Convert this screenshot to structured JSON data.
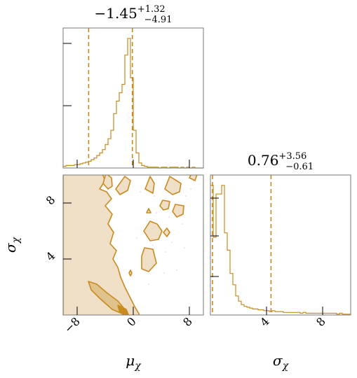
{
  "chart_data": [
    {
      "panel": "mu-marginal",
      "type": "histogram",
      "title": {
        "median": "−1.45",
        "plus": "+1.32",
        "minus": "−4.91"
      },
      "color": "#c98a1f",
      "xlim": [
        -10,
        10
      ],
      "quantiles": [
        -6.36,
        -1.45,
        -0.13
      ],
      "bins_x": [
        -10,
        -9.6,
        -9.2,
        -8.8,
        -8.4,
        -8.0,
        -7.6,
        -7.2,
        -6.8,
        -6.4,
        -6.0,
        -5.6,
        -5.2,
        -4.8,
        -4.4,
        -4.0,
        -3.6,
        -3.2,
        -2.8,
        -2.4,
        -2.0,
        -1.6,
        -1.2,
        -0.8,
        -0.4,
        0.0,
        0.4,
        0.8,
        1.2,
        1.6,
        2.0,
        2.4,
        2.8,
        3.2,
        3.6,
        4.0,
        4.4,
        4.8,
        5.2,
        5.6,
        6.0,
        6.4,
        6.8,
        7.2,
        7.6,
        8.0,
        8.4,
        8.8,
        9.2,
        9.6,
        10.0
      ],
      "counts": [
        2,
        3,
        3,
        3,
        4,
        4,
        5,
        6,
        7,
        8,
        10,
        12,
        15,
        18,
        22,
        28,
        35,
        45,
        65,
        80,
        90,
        100,
        135,
        155,
        108,
        45,
        18,
        6,
        3,
        2,
        1,
        1,
        1,
        1,
        0,
        1,
        1,
        0,
        1,
        1,
        1,
        0,
        1,
        0,
        1,
        0,
        1,
        0,
        0,
        0
      ]
    },
    {
      "panel": "joint",
      "type": "contour",
      "xlabel": "μχ",
      "ylabel": "σχ",
      "xlim": [
        -10,
        10
      ],
      "ylim": [
        0,
        10
      ],
      "xticks": [
        "−8",
        "0",
        "8"
      ],
      "yticks": [
        "4",
        "8"
      ],
      "fill_colors": [
        "#efdfc6",
        "#e0c28c",
        "#c98a1f"
      ],
      "line_color": "#c98a1f"
    },
    {
      "panel": "sigma-marginal",
      "type": "histogram",
      "title": {
        "median": "0.76",
        "plus": "+3.56",
        "minus": "−0.61"
      },
      "color": "#c98a1f",
      "xlim": [
        0,
        10
      ],
      "xlabel": "σχ",
      "xticks": [
        "4",
        "8"
      ],
      "quantiles": [
        0.15,
        0.76,
        4.32
      ],
      "bins_x": [
        0,
        0.2,
        0.4,
        0.6,
        0.8,
        1.0,
        1.2,
        1.4,
        1.6,
        1.8,
        2.0,
        2.2,
        2.4,
        2.6,
        2.8,
        3.0,
        3.2,
        3.4,
        3.6,
        3.8,
        4.0,
        4.2,
        4.4,
        4.6,
        4.8,
        5.0,
        5.2,
        5.4,
        5.6,
        5.8,
        6.0,
        6.2,
        6.4,
        6.6,
        6.8,
        7.0,
        7.2,
        7.4,
        7.6,
        7.8,
        8.0,
        8.2,
        8.4,
        8.6,
        8.8,
        9.0,
        9.2,
        9.4,
        9.6,
        9.8,
        10.0
      ],
      "counts": [
        150,
        90,
        140,
        140,
        150,
        95,
        75,
        48,
        35,
        22,
        16,
        12,
        10,
        9,
        8,
        7,
        7,
        6,
        6,
        5,
        5,
        4,
        5,
        4,
        4,
        4,
        3,
        3,
        3,
        3,
        3,
        3,
        2,
        3,
        2,
        2,
        2,
        2,
        2,
        2,
        2,
        2,
        2,
        2,
        2,
        1,
        2,
        1,
        1,
        1
      ]
    }
  ]
}
